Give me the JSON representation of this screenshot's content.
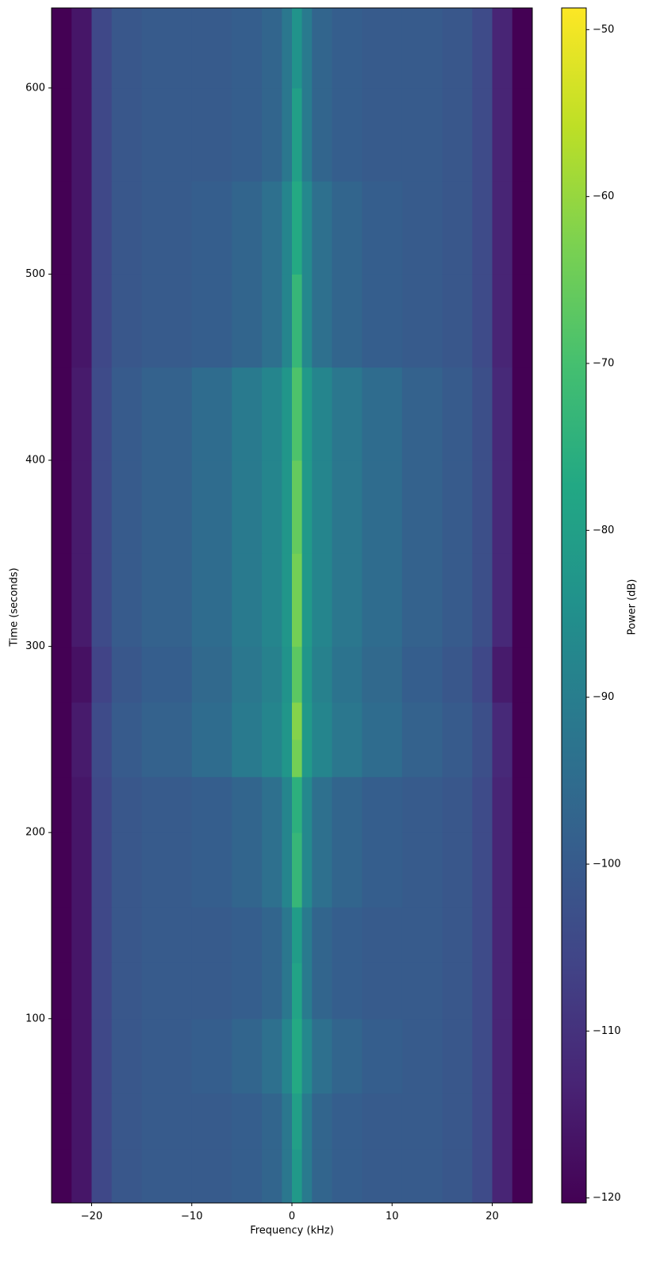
{
  "chart_data": {
    "type": "heatmap",
    "x_label": "Frequency (kHz)",
    "y_label": "Time (seconds)",
    "colorbar_label": "Power (dB)",
    "colormap": "viridis",
    "x_bins": [
      -24,
      -22,
      -20,
      -18,
      -15,
      -10,
      -6,
      -3,
      -1,
      0,
      1,
      2,
      4,
      7,
      11,
      15,
      18,
      20,
      22,
      24
    ],
    "y_bins": [
      1,
      30,
      60,
      100,
      130,
      160,
      200,
      230,
      250,
      270,
      300,
      350,
      400,
      450,
      500,
      550,
      600,
      643
    ],
    "values": [
      [
        -121,
        -116,
        -105,
        -101,
        -100,
        -100,
        -99,
        -97,
        -92,
        -82,
        -91,
        -97,
        -99,
        -100,
        -100,
        -101,
        -104,
        -113,
        -121
      ],
      [
        -121,
        -116,
        -105,
        -101,
        -100,
        -100,
        -99,
        -97,
        -92,
        -80,
        -91,
        -97,
        -99,
        -100,
        -100,
        -101,
        -104,
        -113,
        -121
      ],
      [
        -121,
        -116,
        -105,
        -101,
        -100,
        -99,
        -97,
        -94,
        -88,
        -77,
        -87,
        -94,
        -97,
        -99,
        -100,
        -101,
        -104,
        -113,
        -121
      ],
      [
        -121,
        -116,
        -105,
        -101,
        -100,
        -100,
        -99,
        -97,
        -92,
        -79,
        -91,
        -97,
        -99,
        -100,
        -100,
        -101,
        -104,
        -113,
        -121
      ],
      [
        -121,
        -116,
        -105,
        -101,
        -100,
        -100,
        -99,
        -97,
        -92,
        -81,
        -91,
        -97,
        -99,
        -100,
        -100,
        -101,
        -104,
        -113,
        -121
      ],
      [
        -121,
        -116,
        -105,
        -101,
        -100,
        -99,
        -97,
        -94,
        -88,
        -73,
        -87,
        -94,
        -97,
        -99,
        -100,
        -101,
        -104,
        -113,
        -121
      ],
      [
        -121,
        -116,
        -105,
        -101,
        -100,
        -99,
        -97,
        -94,
        -88,
        -75,
        -87,
        -94,
        -97,
        -99,
        -100,
        -101,
        -104,
        -113,
        -121
      ],
      [
        -121,
        -115,
        -104,
        -100,
        -98,
        -95,
        -91,
        -88,
        -83,
        -64,
        -82,
        -88,
        -92,
        -95,
        -98,
        -100,
        -103,
        -112,
        -121
      ],
      [
        -121,
        -115,
        -104,
        -100,
        -98,
        -95,
        -91,
        -88,
        -83,
        -62,
        -82,
        -88,
        -92,
        -95,
        -98,
        -100,
        -103,
        -112,
        -121
      ],
      [
        -121,
        -117,
        -106,
        -101,
        -99,
        -96,
        -92,
        -89,
        -84,
        -67,
        -83,
        -89,
        -93,
        -96,
        -99,
        -101,
        -105,
        -115,
        -121
      ],
      [
        -121,
        -115,
        -104,
        -100,
        -98,
        -95,
        -91,
        -88,
        -83,
        -64,
        -82,
        -88,
        -92,
        -95,
        -98,
        -100,
        -103,
        -112,
        -121
      ],
      [
        -121,
        -115,
        -104,
        -100,
        -98,
        -95,
        -91,
        -88,
        -83,
        -66,
        -82,
        -88,
        -92,
        -95,
        -98,
        -100,
        -103,
        -112,
        -121
      ],
      [
        -121,
        -115,
        -104,
        -100,
        -98,
        -95,
        -91,
        -88,
        -83,
        -69,
        -82,
        -88,
        -92,
        -95,
        -98,
        -100,
        -103,
        -112,
        -121
      ],
      [
        -121,
        -116,
        -105,
        -101,
        -100,
        -99,
        -97,
        -94,
        -88,
        -73,
        -87,
        -94,
        -97,
        -99,
        -100,
        -101,
        -104,
        -113,
        -121
      ],
      [
        -121,
        -116,
        -105,
        -101,
        -100,
        -99,
        -97,
        -94,
        -88,
        -77,
        -87,
        -94,
        -97,
        -99,
        -100,
        -101,
        -104,
        -113,
        -121
      ],
      [
        -121,
        -116,
        -105,
        -101,
        -100,
        -100,
        -99,
        -97,
        -92,
        -80,
        -91,
        -97,
        -99,
        -100,
        -100,
        -101,
        -104,
        -113,
        -121
      ],
      [
        -121,
        -116,
        -105,
        -101,
        -100,
        -100,
        -99,
        -97,
        -92,
        -84,
        -91,
        -97,
        -99,
        -100,
        -100,
        -101,
        -104,
        -113,
        -121
      ]
    ],
    "xlim": [
      -24,
      24
    ],
    "xticks": [
      {
        "value": -20,
        "label": "−20"
      },
      {
        "value": -10,
        "label": "−10"
      },
      0,
      10,
      20
    ],
    "ylim": [
      1,
      643
    ],
    "yticks": [
      100,
      200,
      300,
      400,
      500,
      600
    ],
    "clim": [
      -120.3,
      -48.7
    ],
    "cticks": [
      {
        "value": -50,
        "label": "−50"
      },
      {
        "value": -60,
        "label": "−60"
      },
      {
        "value": -70,
        "label": "−70"
      },
      {
        "value": -80,
        "label": "−80"
      },
      {
        "value": -90,
        "label": "−90"
      },
      {
        "value": -100,
        "label": "−100"
      },
      {
        "value": -110,
        "label": "−110"
      },
      {
        "value": -120,
        "label": "−120"
      }
    ]
  }
}
